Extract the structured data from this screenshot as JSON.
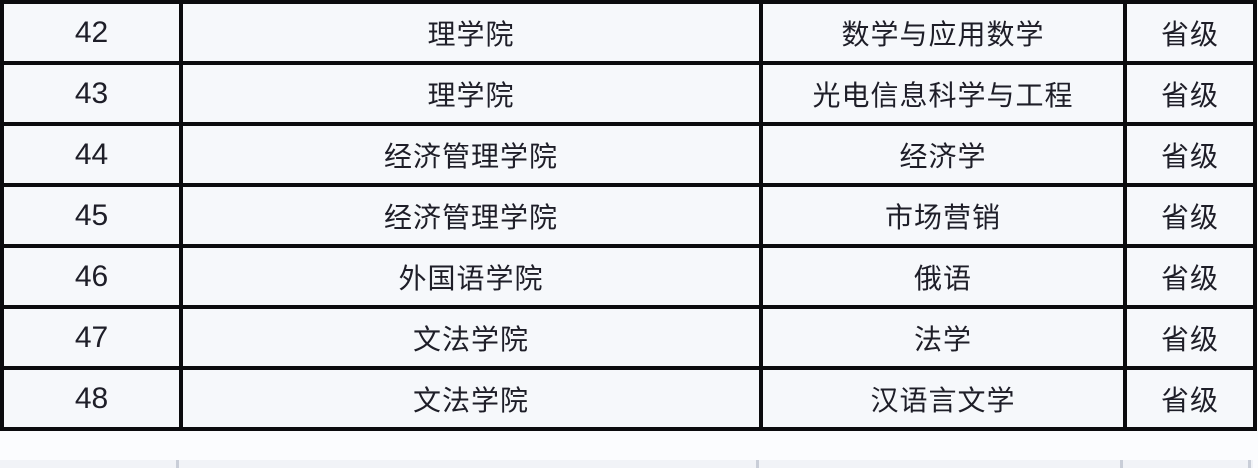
{
  "colors": {
    "border": "#0b0b0e",
    "cell_background": "#f6f8fb",
    "text": "#1e1e28",
    "page_background": "#fbfcfe",
    "faint_line": "#c9ced8"
  },
  "table": {
    "rows": [
      {
        "number": "42",
        "college": "理学院",
        "major": "数学与应用数学",
        "level": "省级"
      },
      {
        "number": "43",
        "college": "理学院",
        "major": "光电信息科学与工程",
        "level": "省级"
      },
      {
        "number": "44",
        "college": "经济管理学院",
        "major": "经济学",
        "level": "省级"
      },
      {
        "number": "45",
        "college": "经济管理学院",
        "major": "市场营销",
        "level": "省级"
      },
      {
        "number": "46",
        "college": "外国语学院",
        "major": "俄语",
        "level": "省级"
      },
      {
        "number": "47",
        "college": "文法学院",
        "major": "法学",
        "level": "省级"
      },
      {
        "number": "48",
        "college": "文法学院",
        "major": "汉语言文学",
        "level": "省级"
      }
    ]
  }
}
